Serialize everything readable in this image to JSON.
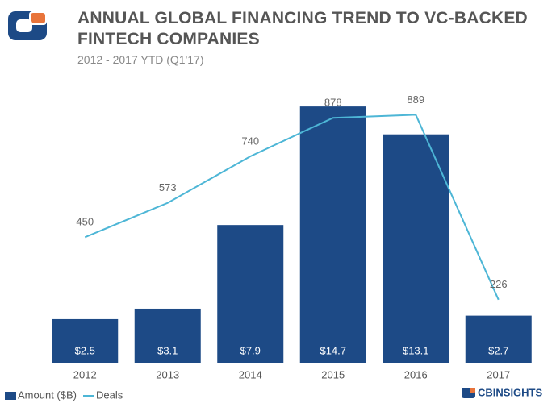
{
  "chart_data": {
    "type": "bar",
    "title": "ANNUAL GLOBAL FINANCING TREND TO VC-BACKED FINTECH COMPANIES",
    "subtitle": "2012 - 2017 YTD (Q1'17)",
    "categories": [
      "2012",
      "2013",
      "2014",
      "2015",
      "2016",
      "2017"
    ],
    "series": [
      {
        "name": "Amount ($B)",
        "type": "bar",
        "color": "#1d4a86",
        "values": [
          2.5,
          3.1,
          7.9,
          14.7,
          13.1,
          2.7
        ],
        "value_labels": [
          "$2.5",
          "$3.1",
          "$7.9",
          "$14.7",
          "$13.1",
          "$2.7"
        ]
      },
      {
        "name": "Deals",
        "type": "line",
        "axis": "y2",
        "color": "#4db6d6",
        "values": [
          450,
          573,
          740,
          878,
          889,
          226
        ]
      }
    ],
    "ylim": [
      0,
      16
    ],
    "y2lim": [
      0,
      1000
    ],
    "legend": "bottom-left",
    "logo_text": "CBINSIGHTS"
  }
}
